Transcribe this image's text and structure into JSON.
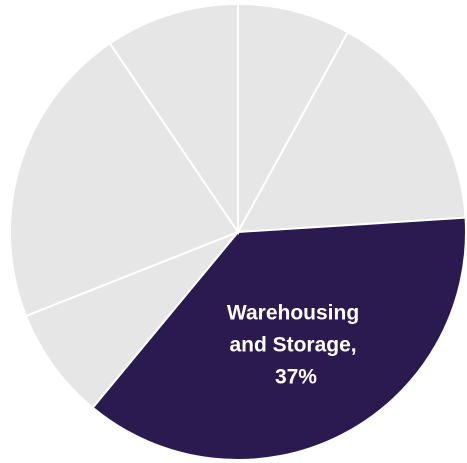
{
  "chart_data": {
    "type": "pie",
    "categories": [
      null,
      null,
      null,
      null,
      null,
      null
    ],
    "values": [
      8,
      16,
      37,
      8,
      21.5,
      9.5
    ],
    "value_labels": [
      null,
      null,
      "Warehousing and Storage, 37%",
      null,
      null,
      null
    ],
    "colors": [
      "#e6e6e6",
      "#e6e6e6",
      "#2b1a4f",
      "#e6e6e6",
      "#e6e6e6",
      "#e6e6e6"
    ],
    "start_angle": 0,
    "direction": "clockwise"
  }
}
